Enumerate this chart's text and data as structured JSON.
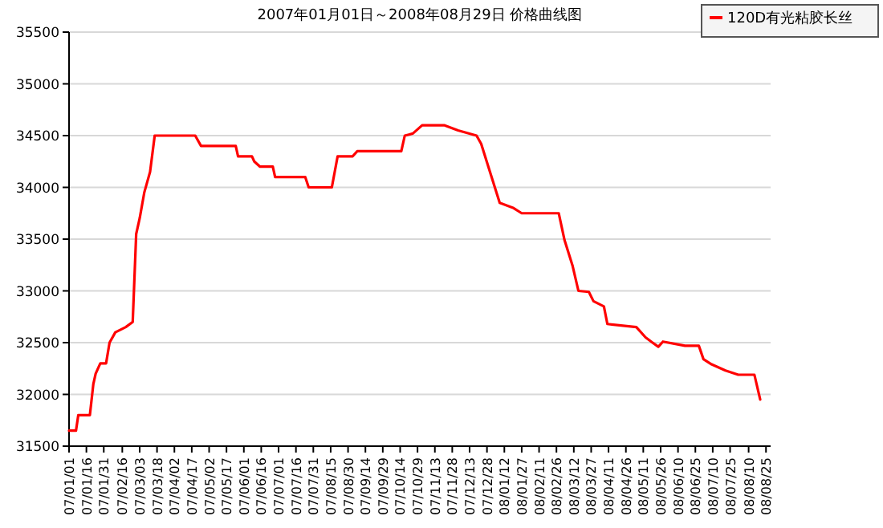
{
  "chart_data": {
    "type": "line",
    "title": "2007年01月01日～2008年08月29日 价格曲线图",
    "x": [
      "2007-01-01",
      "2007-01-07",
      "2007-01-09",
      "2007-01-19",
      "2007-01-22",
      "2007-01-24",
      "2007-01-28",
      "2007-02-02",
      "2007-02-05",
      "2007-02-10",
      "2007-02-19",
      "2007-02-25",
      "2007-02-28",
      "2007-03-03",
      "2007-03-07",
      "2007-03-12",
      "2007-03-16",
      "2007-04-20",
      "2007-04-25",
      "2007-05-25",
      "2007-05-27",
      "2007-06-08",
      "2007-06-10",
      "2007-06-15",
      "2007-06-26",
      "2007-06-28",
      "2007-07-24",
      "2007-07-27",
      "2007-08-16",
      "2007-08-21",
      "2007-09-03",
      "2007-09-07",
      "2007-10-15",
      "2007-10-18",
      "2007-10-25",
      "2007-11-02",
      "2007-11-21",
      "2007-12-03",
      "2007-12-19",
      "2007-12-23",
      "2007-12-30",
      "2008-01-08",
      "2008-01-20",
      "2008-01-27",
      "2008-02-28",
      "2008-03-04",
      "2008-03-11",
      "2008-03-16",
      "2008-03-25",
      "2008-03-29",
      "2008-04-07",
      "2008-04-10",
      "2008-05-05",
      "2008-05-13",
      "2008-05-19",
      "2008-05-24",
      "2008-05-28",
      "2008-06-16",
      "2008-06-28",
      "2008-07-02",
      "2008-07-09",
      "2008-07-21",
      "2008-08-01",
      "2008-08-15",
      "2008-08-20"
    ],
    "series": [
      {
        "name": "120D有光粘胶长丝",
        "color": "#ff0000",
        "values": [
          31650,
          31650,
          31800,
          31800,
          32100,
          32200,
          32300,
          32300,
          32500,
          32600,
          32650,
          32700,
          33550,
          33700,
          33950,
          34150,
          34500,
          34500,
          34400,
          34400,
          34300,
          34300,
          34250,
          34200,
          34200,
          34100,
          34100,
          34000,
          34000,
          34300,
          34300,
          34350,
          34350,
          34500,
          34520,
          34600,
          34600,
          34550,
          34500,
          34420,
          34170,
          33850,
          33800,
          33750,
          33750,
          33490,
          33240,
          33000,
          32990,
          32900,
          32850,
          32680,
          32650,
          32550,
          32500,
          32460,
          32510,
          32470,
          32470,
          32340,
          32290,
          32230,
          32190,
          32190,
          31950
        ]
      }
    ],
    "xlim": [
      "2007-01-01",
      "2008-08-29"
    ],
    "xticks": [
      {
        "value": "2007-01-01",
        "label": "07/01/01"
      },
      {
        "value": "2007-01-16",
        "label": "07/01/16"
      },
      {
        "value": "2007-01-31",
        "label": "07/01/31"
      },
      {
        "value": "2007-02-16",
        "label": "07/02/16"
      },
      {
        "value": "2007-03-03",
        "label": "07/03/03"
      },
      {
        "value": "2007-03-18",
        "label": "07/03/18"
      },
      {
        "value": "2007-04-02",
        "label": "07/04/02"
      },
      {
        "value": "2007-04-17",
        "label": "07/04/17"
      },
      {
        "value": "2007-05-02",
        "label": "07/05/02"
      },
      {
        "value": "2007-05-17",
        "label": "07/05/17"
      },
      {
        "value": "2007-06-01",
        "label": "07/06/01"
      },
      {
        "value": "2007-06-16",
        "label": "07/06/16"
      },
      {
        "value": "2007-07-01",
        "label": "07/07/01"
      },
      {
        "value": "2007-07-16",
        "label": "07/07/16"
      },
      {
        "value": "2007-07-31",
        "label": "07/07/31"
      },
      {
        "value": "2007-08-15",
        "label": "07/08/15"
      },
      {
        "value": "2007-08-30",
        "label": "07/08/30"
      },
      {
        "value": "2007-09-14",
        "label": "07/09/14"
      },
      {
        "value": "2007-09-29",
        "label": "07/09/29"
      },
      {
        "value": "2007-10-14",
        "label": "07/10/14"
      },
      {
        "value": "2007-10-29",
        "label": "07/10/29"
      },
      {
        "value": "2007-11-13",
        "label": "07/11/13"
      },
      {
        "value": "2007-11-28",
        "label": "07/11/28"
      },
      {
        "value": "2007-12-13",
        "label": "07/12/13"
      },
      {
        "value": "2007-12-28",
        "label": "07/12/28"
      },
      {
        "value": "2008-01-12",
        "label": "08/01/12"
      },
      {
        "value": "2008-01-27",
        "label": "08/01/27"
      },
      {
        "value": "2008-02-11",
        "label": "08/02/11"
      },
      {
        "value": "2008-02-26",
        "label": "08/02/26"
      },
      {
        "value": "2008-03-12",
        "label": "08/03/12"
      },
      {
        "value": "2008-03-27",
        "label": "08/03/27"
      },
      {
        "value": "2008-04-11",
        "label": "08/04/11"
      },
      {
        "value": "2008-04-26",
        "label": "08/04/26"
      },
      {
        "value": "2008-05-11",
        "label": "08/05/11"
      },
      {
        "value": "2008-05-26",
        "label": "08/05/26"
      },
      {
        "value": "2008-06-10",
        "label": "08/06/10"
      },
      {
        "value": "2008-06-25",
        "label": "08/06/25"
      },
      {
        "value": "2008-07-10",
        "label": "08/07/10"
      },
      {
        "value": "2008-07-25",
        "label": "08/07/25"
      },
      {
        "value": "2008-08-10",
        "label": "08/08/10"
      },
      {
        "value": "2008-08-25",
        "label": "08/08/25"
      }
    ],
    "ylim": [
      31500,
      35500
    ],
    "yticks": [
      31500,
      32000,
      32500,
      33000,
      33500,
      34000,
      34500,
      35000,
      35500
    ],
    "grid": "y",
    "legend": "top right",
    "marker": "none",
    "line_style": "solid"
  }
}
